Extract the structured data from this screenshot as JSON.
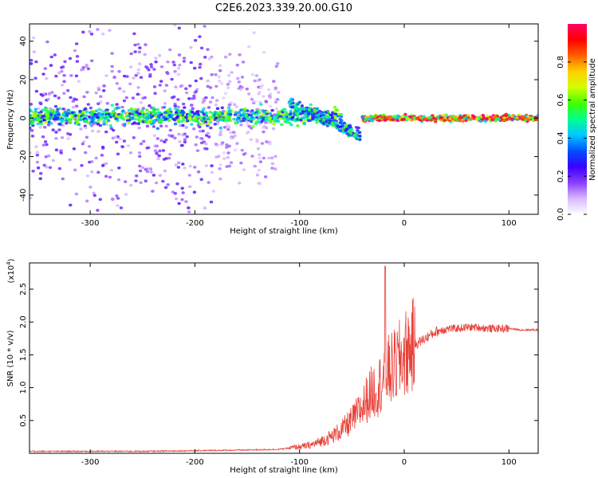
{
  "figure": {
    "title": "C2E6.2023.339.20.00.G10"
  },
  "colors": {
    "axes": "#000000",
    "snr_line": "#e8413a",
    "colorbar_stops": [
      "#ffffff",
      "#d9b8ff",
      "#8a3cff",
      "#3a00ff",
      "#0050ff",
      "#00c8ff",
      "#00ff90",
      "#40ff00",
      "#d0ff00",
      "#ffd000",
      "#ff6000",
      "#ff0000",
      "#ff0066"
    ]
  },
  "chart_data": [
    {
      "type": "heatmap",
      "xlabel": "Height of straight line (km)",
      "ylabel": "Frequency (Hz)",
      "xlim": [
        -358,
        128
      ],
      "ylim": [
        -50,
        49
      ],
      "xticks": [
        -300,
        -200,
        -100,
        0,
        100
      ],
      "yticks": [
        -40,
        -20,
        0,
        20,
        40
      ],
      "xtick_labels": [
        "-300",
        "-200",
        "-100",
        "0",
        "100"
      ],
      "ytick_labels": [
        "-40",
        "-20",
        "0",
        "20",
        "40"
      ],
      "colorbar": {
        "label": "Normalized spectral amplitude",
        "range": [
          0,
          1
        ],
        "ticks": [
          0.0,
          0.2,
          0.4,
          0.6,
          0.8
        ],
        "tick_labels": [
          "0.0",
          "0.2",
          "0.4",
          "0.6",
          "0.8"
        ]
      },
      "features": [
        {
          "x_range": [
            -358,
            -180
          ],
          "f_center": 0,
          "f_spread": 50,
          "amplitude": 0.15
        },
        {
          "x_range": [
            -180,
            -120
          ],
          "f_center": 0,
          "f_spread": 30,
          "amplitude": 0.1
        },
        {
          "x_range": [
            -358,
            -60
          ],
          "f_center": 1,
          "f_spread": 4,
          "amplitude": 0.45
        },
        {
          "x_range": [
            -110,
            -42
          ],
          "f_center": -8,
          "f_spread": 6,
          "amplitude": 0.4
        },
        {
          "x_range": [
            -40,
            128
          ],
          "f_center": 0,
          "f_spread": 1.5,
          "amplitude": 0.75
        }
      ]
    },
    {
      "type": "line",
      "xlabel": "Height of straight line (km)",
      "ylabel": "SNR (10 * v/v)",
      "y_multiplier": "(x10",
      "y_multiplier_exp": "4",
      "y_multiplier_close": ")",
      "xlim": [
        -358,
        128
      ],
      "ylim": [
        0,
        2.9
      ],
      "xticks": [
        -300,
        -200,
        -100,
        0,
        100
      ],
      "yticks": [
        0.5,
        1.0,
        1.5,
        2.0,
        2.5
      ],
      "xtick_labels": [
        "-300",
        "-200",
        "-100",
        "0",
        "100"
      ],
      "ytick_labels": [
        "0.5",
        "1.0",
        "1.5",
        "2.0",
        "2.5"
      ],
      "series": [
        {
          "x": [
            -358,
            -300,
            -250,
            -200,
            -150,
            -120,
            -100,
            -90,
            -80,
            -70,
            -60,
            -50,
            -40,
            -35,
            -30,
            -25,
            -20,
            -18,
            -15,
            -10,
            -5,
            0,
            5,
            10,
            20,
            30,
            40,
            50,
            60,
            70,
            80,
            90,
            100,
            110,
            128
          ],
          "y": [
            0.03,
            0.03,
            0.03,
            0.04,
            0.05,
            0.06,
            0.1,
            0.12,
            0.18,
            0.25,
            0.35,
            0.5,
            0.7,
            0.85,
            0.95,
            1.0,
            1.15,
            1.2,
            1.25,
            1.3,
            1.4,
            1.5,
            1.6,
            1.65,
            1.75,
            1.85,
            1.9,
            1.9,
            1.92,
            1.92,
            1.9,
            1.9,
            1.9,
            1.88,
            1.88
          ]
        }
      ],
      "annotations": [
        {
          "x": -18,
          "y": 2.85,
          "note": "spike"
        }
      ]
    }
  ]
}
